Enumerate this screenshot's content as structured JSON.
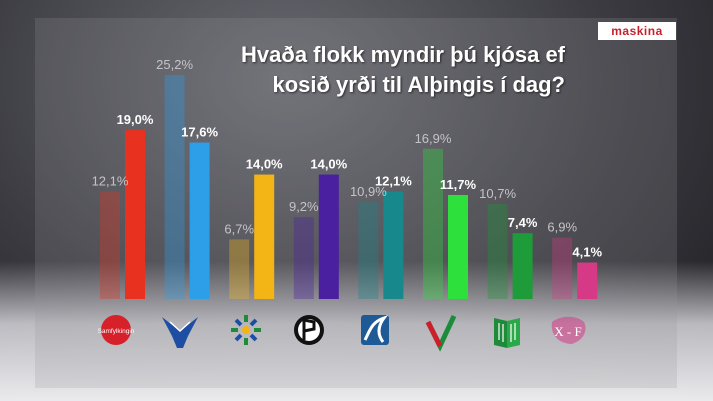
{
  "brand": {
    "name": "maskina"
  },
  "title": {
    "line1": "Hvaða flokk myndir þú kjósa ef",
    "line2": "kosið yrði til Alþingis í dag?"
  },
  "chart_data": {
    "type": "bar",
    "title": "Hvaða flokk myndir þú kjósa ef kosið yrði til Alþingis í dag?",
    "categories": [
      "Samfylkingin",
      "Sjálfstæðisflokkurinn",
      "Framsóknarflokkurinn",
      "Píratar",
      "Viðreisn",
      "Miðflokkurinn",
      "Vinstrihreyfingin – grænt framboð",
      "Flokkur fólksins"
    ],
    "series": [
      {
        "values": [
          12.1,
          25.2,
          6.7,
          9.2,
          10.9,
          16.9,
          10.7,
          6.9
        ]
      },
      {
        "values": [
          19.0,
          17.6,
          14.0,
          14.0,
          12.1,
          11.7,
          7.4,
          4.1
        ]
      }
    ],
    "value_labels": [
      [
        "12,1%",
        "25,2%",
        "6,7%",
        "9,2%",
        "10,9%",
        "16,9%",
        "10,7%",
        "6,9%"
      ],
      [
        "19,0%",
        "17,6%",
        "14,0%",
        "14,0%",
        "12,1%",
        "11,7%",
        "7,4%",
        "4,1%"
      ]
    ],
    "colors": [
      "#e8311f",
      "#2d9ee8",
      "#f3b416",
      "#4a1fa0",
      "#17898c",
      "#2ee03c",
      "#1e9c3a",
      "#d63a86"
    ],
    "logo_texts": [
      "Samfylkingin",
      "X - F"
    ],
    "ylim": [
      0,
      27
    ],
    "grid": false,
    "legend": "none"
  }
}
